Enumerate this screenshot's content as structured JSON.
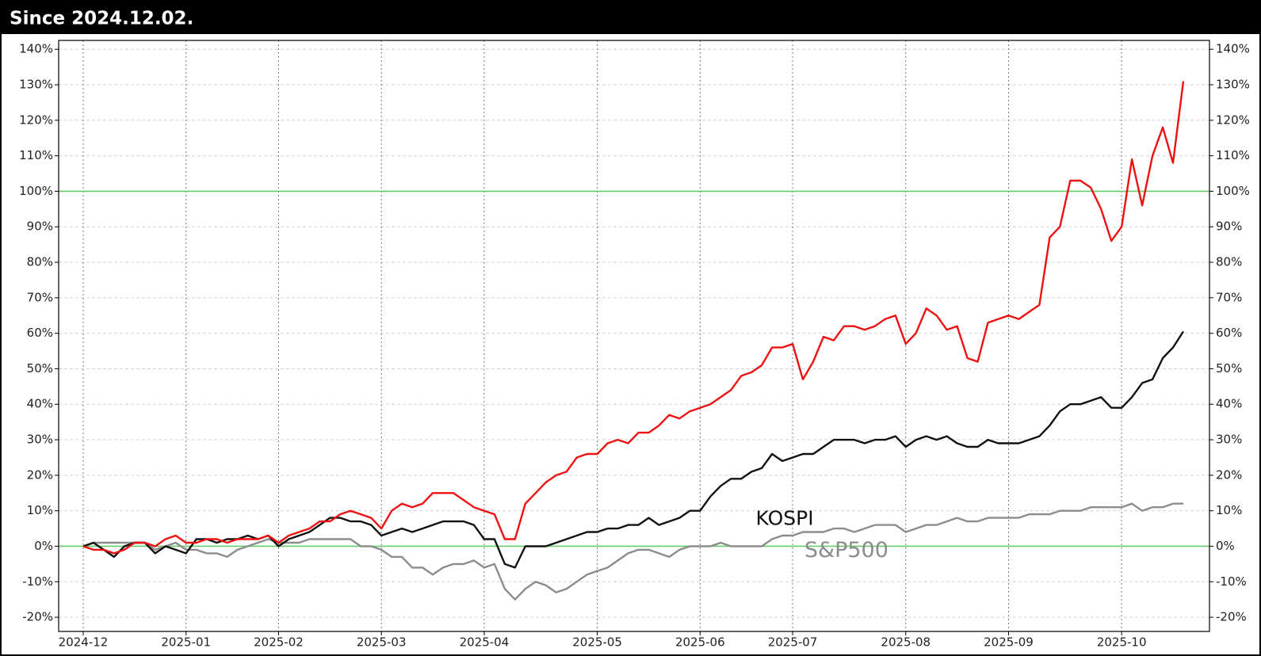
{
  "chart_data": {
    "type": "line",
    "title": "Since 2024.12.02.",
    "categories": [
      "2024-12",
      null,
      null,
      null,
      null,
      null,
      null,
      null,
      null,
      null,
      "2025-01",
      null,
      null,
      null,
      null,
      null,
      null,
      null,
      null,
      "2025-02",
      null,
      null,
      null,
      null,
      null,
      null,
      null,
      null,
      null,
      "2025-03",
      null,
      null,
      null,
      null,
      null,
      null,
      null,
      null,
      null,
      "2025-04",
      null,
      null,
      null,
      null,
      null,
      null,
      null,
      null,
      null,
      null,
      "2025-05",
      null,
      null,
      null,
      null,
      null,
      null,
      null,
      null,
      null,
      "2025-06",
      null,
      null,
      null,
      null,
      null,
      null,
      null,
      null,
      "2025-07",
      null,
      null,
      null,
      null,
      null,
      null,
      null,
      null,
      null,
      null,
      "2025-08",
      null,
      null,
      null,
      null,
      null,
      null,
      null,
      null,
      null,
      "2025-09",
      null,
      null,
      null,
      null,
      null,
      null,
      null,
      null,
      null,
      null,
      "2025-10",
      null,
      null,
      null,
      null,
      null,
      null
    ],
    "series": [
      {
        "color": "#ee1111",
        "values": [
          0,
          -1,
          -1,
          -2,
          -1,
          1,
          1,
          0,
          2,
          3,
          1,
          1,
          2,
          2,
          1,
          2,
          2,
          2,
          3,
          1,
          3,
          4,
          5,
          7,
          7,
          9,
          10,
          9,
          8,
          5,
          10,
          12,
          11,
          12,
          15,
          15,
          15,
          13,
          11,
          10,
          9,
          2,
          2,
          12,
          15,
          18,
          20,
          21,
          25,
          26,
          26,
          29,
          30,
          29,
          32,
          32,
          34,
          37,
          36,
          38,
          39,
          40,
          42,
          44,
          48,
          49,
          51,
          56,
          56,
          57,
          47,
          52,
          59,
          58,
          62,
          62,
          61,
          62,
          64,
          65,
          57,
          60,
          67,
          65,
          61,
          62,
          53,
          52,
          63,
          64,
          65,
          64,
          66,
          68,
          87,
          90,
          103,
          103,
          101,
          95,
          86,
          90,
          109,
          96,
          110,
          118,
          108,
          131
        ]
      },
      {
        "name": "KOSPI",
        "color": "#111111",
        "values": [
          0,
          1,
          -1,
          -3,
          0,
          1,
          1,
          -2,
          0,
          -1,
          -2,
          2,
          2,
          1,
          2,
          2,
          3,
          2,
          3,
          0,
          2,
          3,
          4,
          6,
          8,
          8,
          7,
          7,
          6,
          3,
          4,
          5,
          4,
          5,
          6,
          7,
          7,
          7,
          6,
          2,
          2,
          -5,
          -6,
          0,
          0,
          0,
          1,
          2,
          3,
          4,
          4,
          5,
          5,
          6,
          6,
          8,
          6,
          7,
          8,
          10,
          10,
          14,
          17,
          19,
          19,
          21,
          22,
          26,
          24,
          25,
          26,
          26,
          28,
          30,
          30,
          30,
          29,
          30,
          30,
          31,
          28,
          30,
          31,
          30,
          31,
          29,
          28,
          28,
          30,
          29,
          29,
          29,
          30,
          31,
          34,
          38,
          40,
          40,
          41,
          42,
          39,
          39,
          42,
          46,
          47,
          53,
          56,
          60.5
        ]
      },
      {
        "name": "S&P500",
        "color": "#8c8c8c",
        "values": [
          0,
          1,
          1,
          1,
          1,
          1,
          1,
          -1,
          0,
          1,
          -1,
          -1,
          -2,
          -2,
          -3,
          -1,
          0,
          1,
          2,
          1,
          1,
          1,
          2,
          2,
          2,
          2,
          2,
          0,
          0,
          -1,
          -3,
          -3,
          -6,
          -6,
          -8,
          -6,
          -5,
          -5,
          -4,
          -6,
          -5,
          -12,
          -15,
          -12,
          -10,
          -11,
          -13,
          -12,
          -10,
          -8,
          -7,
          -6,
          -4,
          -2,
          -1,
          -1,
          -2,
          -3,
          -1,
          0,
          0,
          0,
          1,
          0,
          0,
          0,
          0,
          2,
          3,
          3,
          4,
          4,
          4,
          5,
          5,
          4,
          5,
          6,
          6,
          6,
          4,
          5,
          6,
          6,
          7,
          8,
          7,
          7,
          8,
          8,
          8,
          8,
          9,
          9,
          9,
          10,
          10,
          10,
          11,
          11,
          11,
          11,
          12,
          10,
          11,
          11,
          12,
          12
        ]
      }
    ],
    "ylim": [
      -24,
      142.5
    ],
    "yticks": [
      {
        "value": -20,
        "label": "-20%"
      },
      {
        "value": -10,
        "label": "-10%"
      },
      {
        "value": 0,
        "label": "0%"
      },
      {
        "value": 10,
        "label": "10%"
      },
      {
        "value": 20,
        "label": "20%"
      },
      {
        "value": 30,
        "label": "30%"
      },
      {
        "value": 40,
        "label": "40%"
      },
      {
        "value": 50,
        "label": "50%"
      },
      {
        "value": 60,
        "label": "60%"
      },
      {
        "value": 70,
        "label": "70%"
      },
      {
        "value": 80,
        "label": "80%"
      },
      {
        "value": 90,
        "label": "90%"
      },
      {
        "value": 100,
        "label": "100%"
      },
      {
        "value": 110,
        "label": "110%"
      },
      {
        "value": 120,
        "label": "120%"
      },
      {
        "value": 130,
        "label": "130%"
      },
      {
        "value": 140,
        "label": "140%"
      }
    ],
    "y2lim": [
      -24,
      142.5
    ],
    "y2ticks": [
      {
        "value": -20,
        "label": "-20%"
      },
      {
        "value": -10,
        "label": "-10%"
      },
      {
        "value": 0,
        "label": "0%"
      },
      {
        "value": 10,
        "label": "10%"
      },
      {
        "value": 20,
        "label": "20%"
      },
      {
        "value": 30,
        "label": "30%"
      },
      {
        "value": 40,
        "label": "40%"
      },
      {
        "value": 50,
        "label": "50%"
      },
      {
        "value": 60,
        "label": "60%"
      },
      {
        "value": 70,
        "label": "70%"
      },
      {
        "value": 80,
        "label": "80%"
      },
      {
        "value": 90,
        "label": "90%"
      },
      {
        "value": 100,
        "label": "100%"
      },
      {
        "value": 110,
        "label": "110%"
      },
      {
        "value": 120,
        "label": "120%"
      },
      {
        "value": 130,
        "label": "130%"
      },
      {
        "value": 140,
        "label": "140%"
      }
    ],
    "grid": true,
    "reference_lines": [
      {
        "value": 0,
        "color": "#66cc66"
      },
      {
        "value": 100,
        "color": "#66cc66"
      }
    ]
  }
}
